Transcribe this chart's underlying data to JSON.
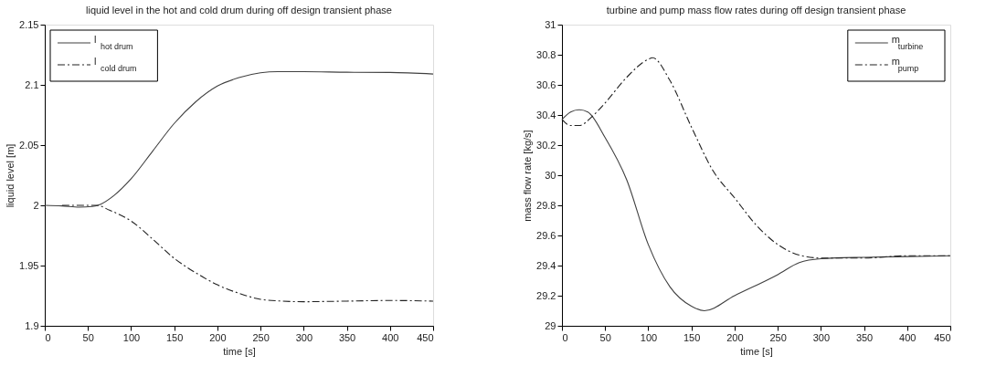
{
  "chart_data": [
    {
      "type": "line",
      "title": "liquid level in the hot and cold drum during off design transient phase",
      "xlabel": "time [s]",
      "ylabel": "liquid level [m]",
      "xlim": [
        0,
        450
      ],
      "xticks": [
        0,
        50,
        100,
        150,
        200,
        250,
        300,
        350,
        400,
        450
      ],
      "ylim": [
        1.9,
        2.15
      ],
      "yticks": [
        1.9,
        1.95,
        2,
        2.05,
        2.1,
        2.15
      ],
      "grid": false,
      "legend": "top left",
      "marker": "none",
      "series": [
        {
          "name": "l$_{hot drum}$",
          "color": "#404040",
          "line_style": "solid",
          "x": [
            0,
            20,
            40,
            55,
            65,
            80,
            100,
            125,
            150,
            175,
            200,
            225,
            250,
            270,
            300,
            350,
            400,
            450
          ],
          "values": [
            2.0,
            1.9995,
            1.9985,
            1.999,
            2.001,
            2.008,
            2.022,
            2.045,
            2.068,
            2.086,
            2.099,
            2.106,
            2.11,
            2.111,
            2.111,
            2.1105,
            2.1103,
            2.109
          ]
        },
        {
          "name": "l$_{cold drum}$",
          "color": "#202020",
          "line_style": "dashed",
          "x": [
            20,
            50,
            60,
            75,
            100,
            125,
            150,
            175,
            200,
            225,
            250,
            275,
            300,
            350,
            400,
            450
          ],
          "values": [
            2.0,
            2.0,
            2.0,
            1.996,
            1.987,
            1.972,
            1.956,
            1.944,
            1.934,
            1.927,
            1.922,
            1.9205,
            1.92,
            1.9205,
            1.921,
            1.9205
          ]
        }
      ]
    },
    {
      "type": "line",
      "title": "turbine and pump mass flow rates during off design transient phase",
      "xlabel": "time [s]",
      "ylabel": "mass flow rate [kg/s]",
      "xlim": [
        0,
        450
      ],
      "xticks": [
        0,
        50,
        100,
        150,
        200,
        250,
        300,
        350,
        400,
        450
      ],
      "ylim": [
        29,
        31
      ],
      "yticks": [
        29,
        29.2,
        29.4,
        29.6,
        29.8,
        30,
        30.2,
        30.4,
        30.6,
        30.8,
        31
      ],
      "grid": false,
      "legend": "top right",
      "marker": "none",
      "series": [
        {
          "name": "m$_{turbine}$",
          "color": "#404040",
          "line_style": "solid",
          "x": [
            0,
            10,
            20,
            30,
            50,
            75,
            100,
            125,
            150,
            165,
            200,
            250,
            275,
            300,
            350,
            400,
            450
          ],
          "values": [
            30.37,
            30.42,
            30.435,
            30.42,
            30.25,
            29.97,
            29.54,
            29.26,
            29.13,
            29.1,
            29.2,
            29.34,
            29.42,
            29.445,
            29.455,
            29.46,
            29.465
          ]
        },
        {
          "name": "m$_{pump}$",
          "color": "#202020",
          "line_style": "dashed",
          "x": [
            0,
            10,
            20,
            35,
            50,
            75,
            100,
            105,
            125,
            150,
            175,
            200,
            225,
            250,
            275,
            300,
            350,
            400,
            450
          ],
          "values": [
            30.37,
            30.33,
            30.33,
            30.39,
            30.48,
            30.65,
            30.77,
            30.78,
            30.63,
            30.32,
            30.03,
            29.85,
            29.67,
            29.54,
            29.47,
            29.45,
            29.45,
            29.465,
            29.465
          ]
        }
      ]
    }
  ]
}
